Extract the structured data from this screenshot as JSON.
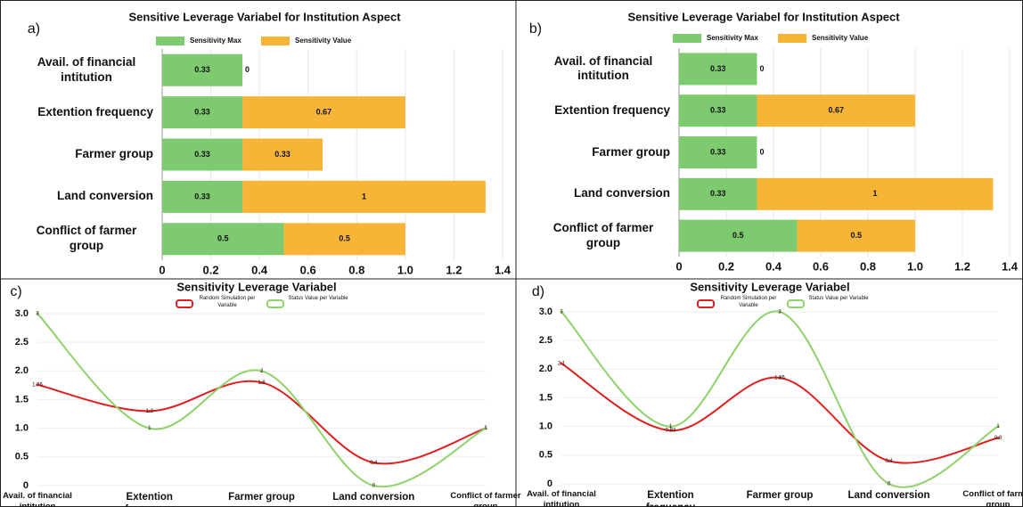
{
  "chart_data": [
    {
      "type": "hbar-stacked",
      "panel": "a)",
      "title": "Sensitive Leverage Variabel for Institution Aspect",
      "categories": [
        "Avail. of financial intitution",
        "Extention frequency",
        "Farmer group",
        "Land conversion",
        "Conflict of farmer group"
      ],
      "series": [
        {
          "name": "Sensitivity Max",
          "color": "#7dcb6e",
          "values": [
            0.33,
            0.33,
            0.33,
            0.33,
            0.5
          ]
        },
        {
          "name": "Sensitivity Value",
          "color": "#f7b538",
          "values": [
            0,
            0.67,
            0.33,
            1,
            0.5
          ]
        }
      ],
      "xlim": [
        0,
        1.4
      ],
      "xticks": [
        0,
        0.2,
        0.4,
        0.6,
        0.8,
        {
          "value": 1,
          "label": "1.0"
        },
        1.2,
        1.4
      ],
      "grid": true
    },
    {
      "type": "hbar-stacked",
      "panel": "b)",
      "title": "Sensitive Leverage Variabel for Institution Aspect",
      "categories": [
        "Avail. of financial intitution",
        "Extention frequency",
        "Farmer group",
        "Land conversion",
        "Conflict of farmer group"
      ],
      "series": [
        {
          "name": "Sensitivity Max",
          "color": "#7dcb6e",
          "values": [
            0.33,
            0.33,
            0.33,
            0.33,
            0.5
          ]
        },
        {
          "name": "Sensitivity Value",
          "color": "#f7b538",
          "values": [
            0,
            0.67,
            0,
            1,
            0.5
          ]
        }
      ],
      "xlim": [
        0,
        1.4
      ],
      "xticks": [
        0,
        0.2,
        0.4,
        0.6,
        0.8,
        {
          "value": 1,
          "label": "1.0"
        },
        1.2,
        1.4
      ],
      "grid": true
    },
    {
      "type": "line",
      "panel": "c)",
      "title": "Sensitivity Leverage Variabel",
      "categories": [
        "Avail. of financial intitution",
        "Extention frequency",
        "Farmer group",
        "Land conversion",
        "Conflict of farmer group"
      ],
      "series": [
        {
          "name": "Random Simulation per Variable",
          "color": "#e02020",
          "values": [
            1.76,
            1.3,
            1.8,
            0.4,
            1
          ]
        },
        {
          "name": "Status Value per Variable",
          "color": "#8fd16a",
          "values": [
            3,
            1,
            2,
            0,
            1
          ]
        }
      ],
      "ylim": [
        0,
        3
      ],
      "yticks": [
        0,
        0.5,
        {
          "value": 1,
          "label": "1.0"
        },
        1.5,
        {
          "value": 2,
          "label": "2.0"
        },
        2.5,
        {
          "value": 3,
          "label": "3.0"
        }
      ],
      "grid": true
    },
    {
      "type": "line",
      "panel": "d)",
      "title": "Sensitivity Leverage Variabel",
      "categories": [
        "Avail. of financial intitution",
        "Extention frequency",
        "Farmer group",
        "Land conversion",
        "Conflict of farmer group"
      ],
      "series": [
        {
          "name": "Random Simulation per Variable",
          "color": "#e02020",
          "values": [
            2.1,
            0.93,
            1.85,
            0.4,
            0.8
          ]
        },
        {
          "name": "Status Value per Variable",
          "color": "#8fd16a",
          "values": [
            3,
            1,
            3,
            0,
            1
          ]
        }
      ],
      "ylim": [
        0,
        3
      ],
      "yticks": [
        0,
        0.5,
        {
          "value": 1,
          "label": "1.0"
        },
        1.5,
        {
          "value": 2,
          "label": "2.0"
        },
        2.5,
        {
          "value": 3,
          "label": "3.0"
        }
      ],
      "grid": true
    }
  ]
}
